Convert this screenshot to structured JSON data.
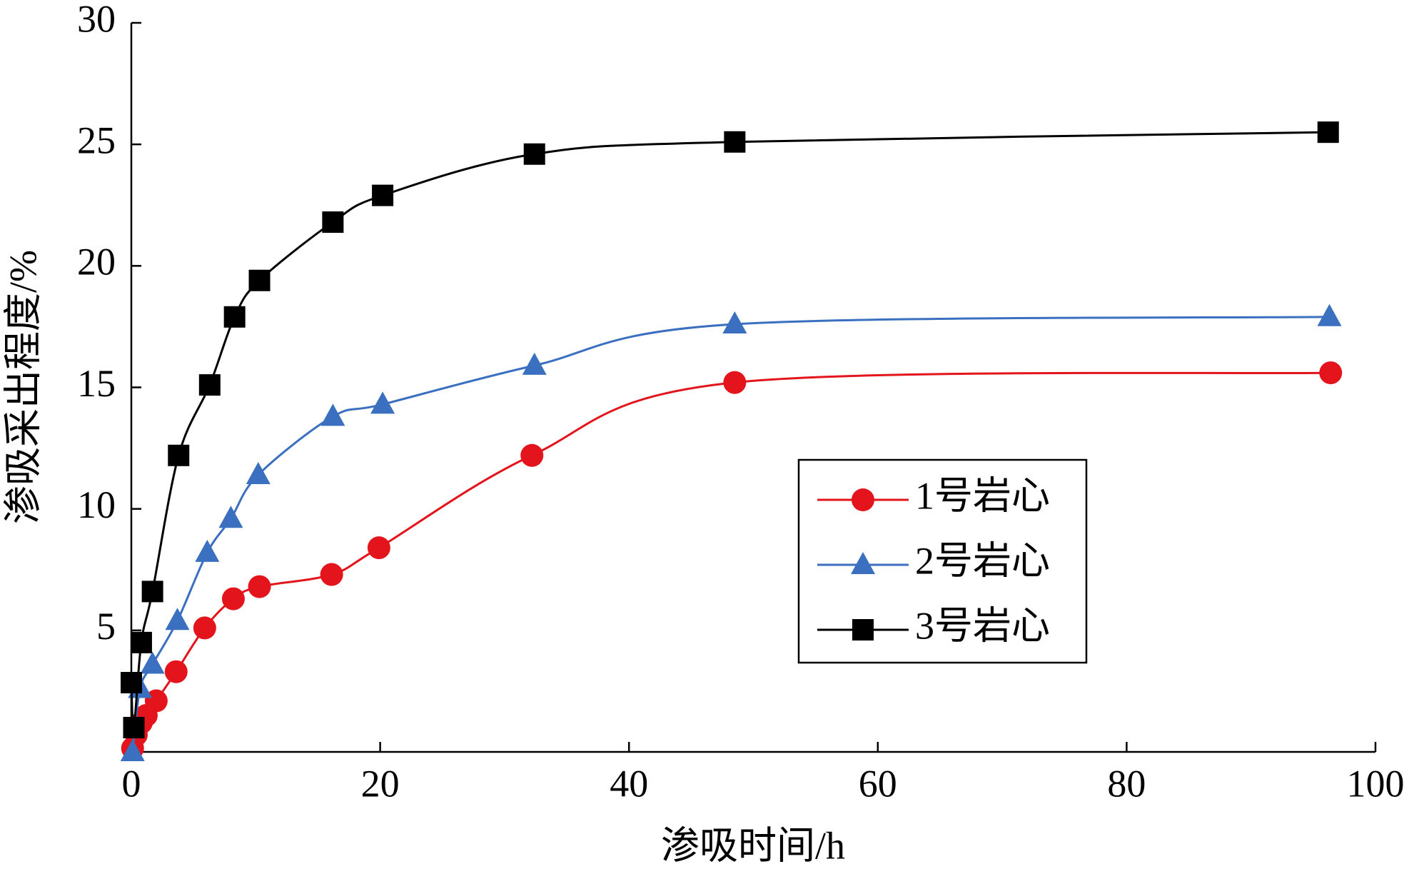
{
  "chart_data": {
    "type": "line",
    "xlabel": "渗吸时间/h",
    "ylabel": "渗吸采出程度/%",
    "xlim": [
      0,
      100
    ],
    "xticks": [
      0,
      20,
      40,
      60,
      80,
      100
    ],
    "ylim": [
      0,
      30
    ],
    "yticks": [
      5,
      10,
      15,
      20,
      25,
      30
    ],
    "series": [
      {
        "name": "1号岩心",
        "color": "#e3141b",
        "marker": "circle",
        "x": [
          0.1,
          0.4,
          0.8,
          1.2,
          2.0,
          3.6,
          5.9,
          8.2,
          10.3,
          16.1,
          19.9,
          32.2,
          48.5,
          96.4
        ],
        "values": [
          0.15,
          0.7,
          1.2,
          1.5,
          2.1,
          3.3,
          5.1,
          6.3,
          6.8,
          7.3,
          8.4,
          12.2,
          15.2,
          15.6
        ]
      },
      {
        "name": "2号岩心",
        "color": "#3b6fc0",
        "marker": "triangle",
        "x": [
          0.1,
          0.7,
          1.7,
          3.7,
          6.1,
          8.0,
          10.2,
          16.2,
          20.2,
          32.4,
          48.5,
          96.3
        ],
        "values": [
          0,
          2.6,
          3.6,
          5.4,
          8.2,
          9.6,
          11.4,
          13.8,
          14.3,
          15.9,
          17.6,
          17.9
        ]
      },
      {
        "name": "3号岩心",
        "color": "#000000",
        "marker": "square",
        "x": [
          0,
          0.2,
          0.8,
          1.7,
          3.8,
          6.3,
          8.3,
          10.3,
          16.2,
          20.2,
          32.4,
          48.5,
          96.2
        ],
        "values": [
          2.85,
          1.0,
          4.5,
          6.6,
          12.2,
          15.1,
          17.9,
          19.4,
          21.8,
          22.9,
          24.6,
          25.1,
          25.5
        ]
      }
    ]
  }
}
